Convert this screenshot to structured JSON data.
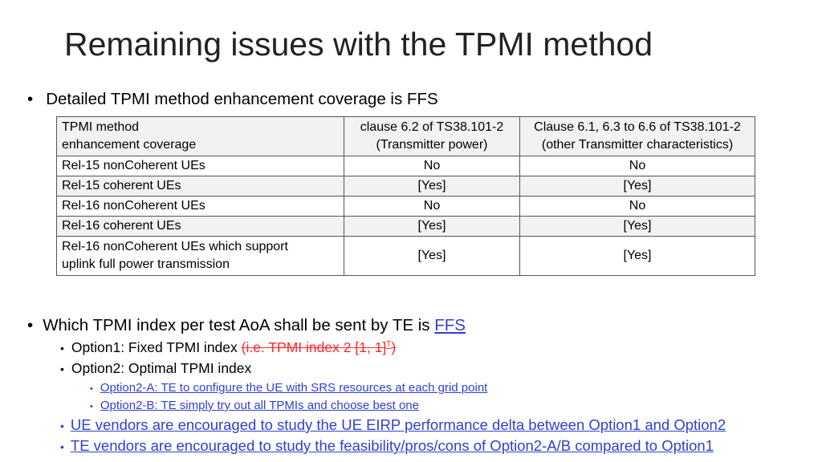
{
  "slide": {
    "title": "Remaining issues with the TPMI method"
  },
  "bullet1": {
    "glyph": "•",
    "text": "Detailed TPMI method enhancement coverage is FFS"
  },
  "table": {
    "header": {
      "col0_line1": "TPMI method",
      "col0_line2": "enhancement coverage",
      "col1_line1": "clause 6.2 of TS38.101-2",
      "col1_line2": "(Transmitter power)",
      "col2_line1": "Clause 6.1, 6.3 to 6.6 of TS38.101-2",
      "col2_line2": "(other Transmitter characteristics)"
    },
    "rows": [
      {
        "label": "Rel-15 nonCoherent UEs",
        "power": "No",
        "other": "No"
      },
      {
        "label": "Rel-15 coherent UEs",
        "power": "[Yes]",
        "other": "[Yes]"
      },
      {
        "label": "Rel-16 nonCoherent UEs",
        "power": "No",
        "other": "No"
      },
      {
        "label": "Rel-16 coherent UEs",
        "power": "[Yes]",
        "other": "[Yes]"
      }
    ],
    "last_row": {
      "label_line1": "Rel-16 nonCoherent UEs which support",
      "label_line2": "uplink full power transmission",
      "power": "[Yes]",
      "other": "[Yes]"
    }
  },
  "bullet2": {
    "glyph": "•",
    "text": "Which TPMI index per test AoA shall be sent by TE is ",
    "link": "FFS"
  },
  "options": {
    "glyph": "•",
    "option1_text": "Option1: Fixed TPMI index ",
    "option1_struck": "(i.e. TPMI index 2 [1, 1]",
    "option1_sup": "T",
    "option1_struck_end": ")",
    "option2_text": "Option2: Optimal TPMI index",
    "option2a": "Option2-A: TE to configure the UE with SRS resources at each grid point",
    "option2b": "Option2-B: TE simply try out all TPMIs and choose best one"
  },
  "notes": {
    "glyph": "•",
    "ue_vendors": "UE vendors are encouraged to study the UE EIRP performance delta between Option1 and Option2",
    "te_vendors": "TE vendors are encouraged to study the feasibility/pros/cons of Option2-A/B compared to Option1"
  },
  "colors": {
    "link_blue": "#2f3fcf",
    "strike_red": "#ff2a2a",
    "title_gray": "#222222"
  }
}
